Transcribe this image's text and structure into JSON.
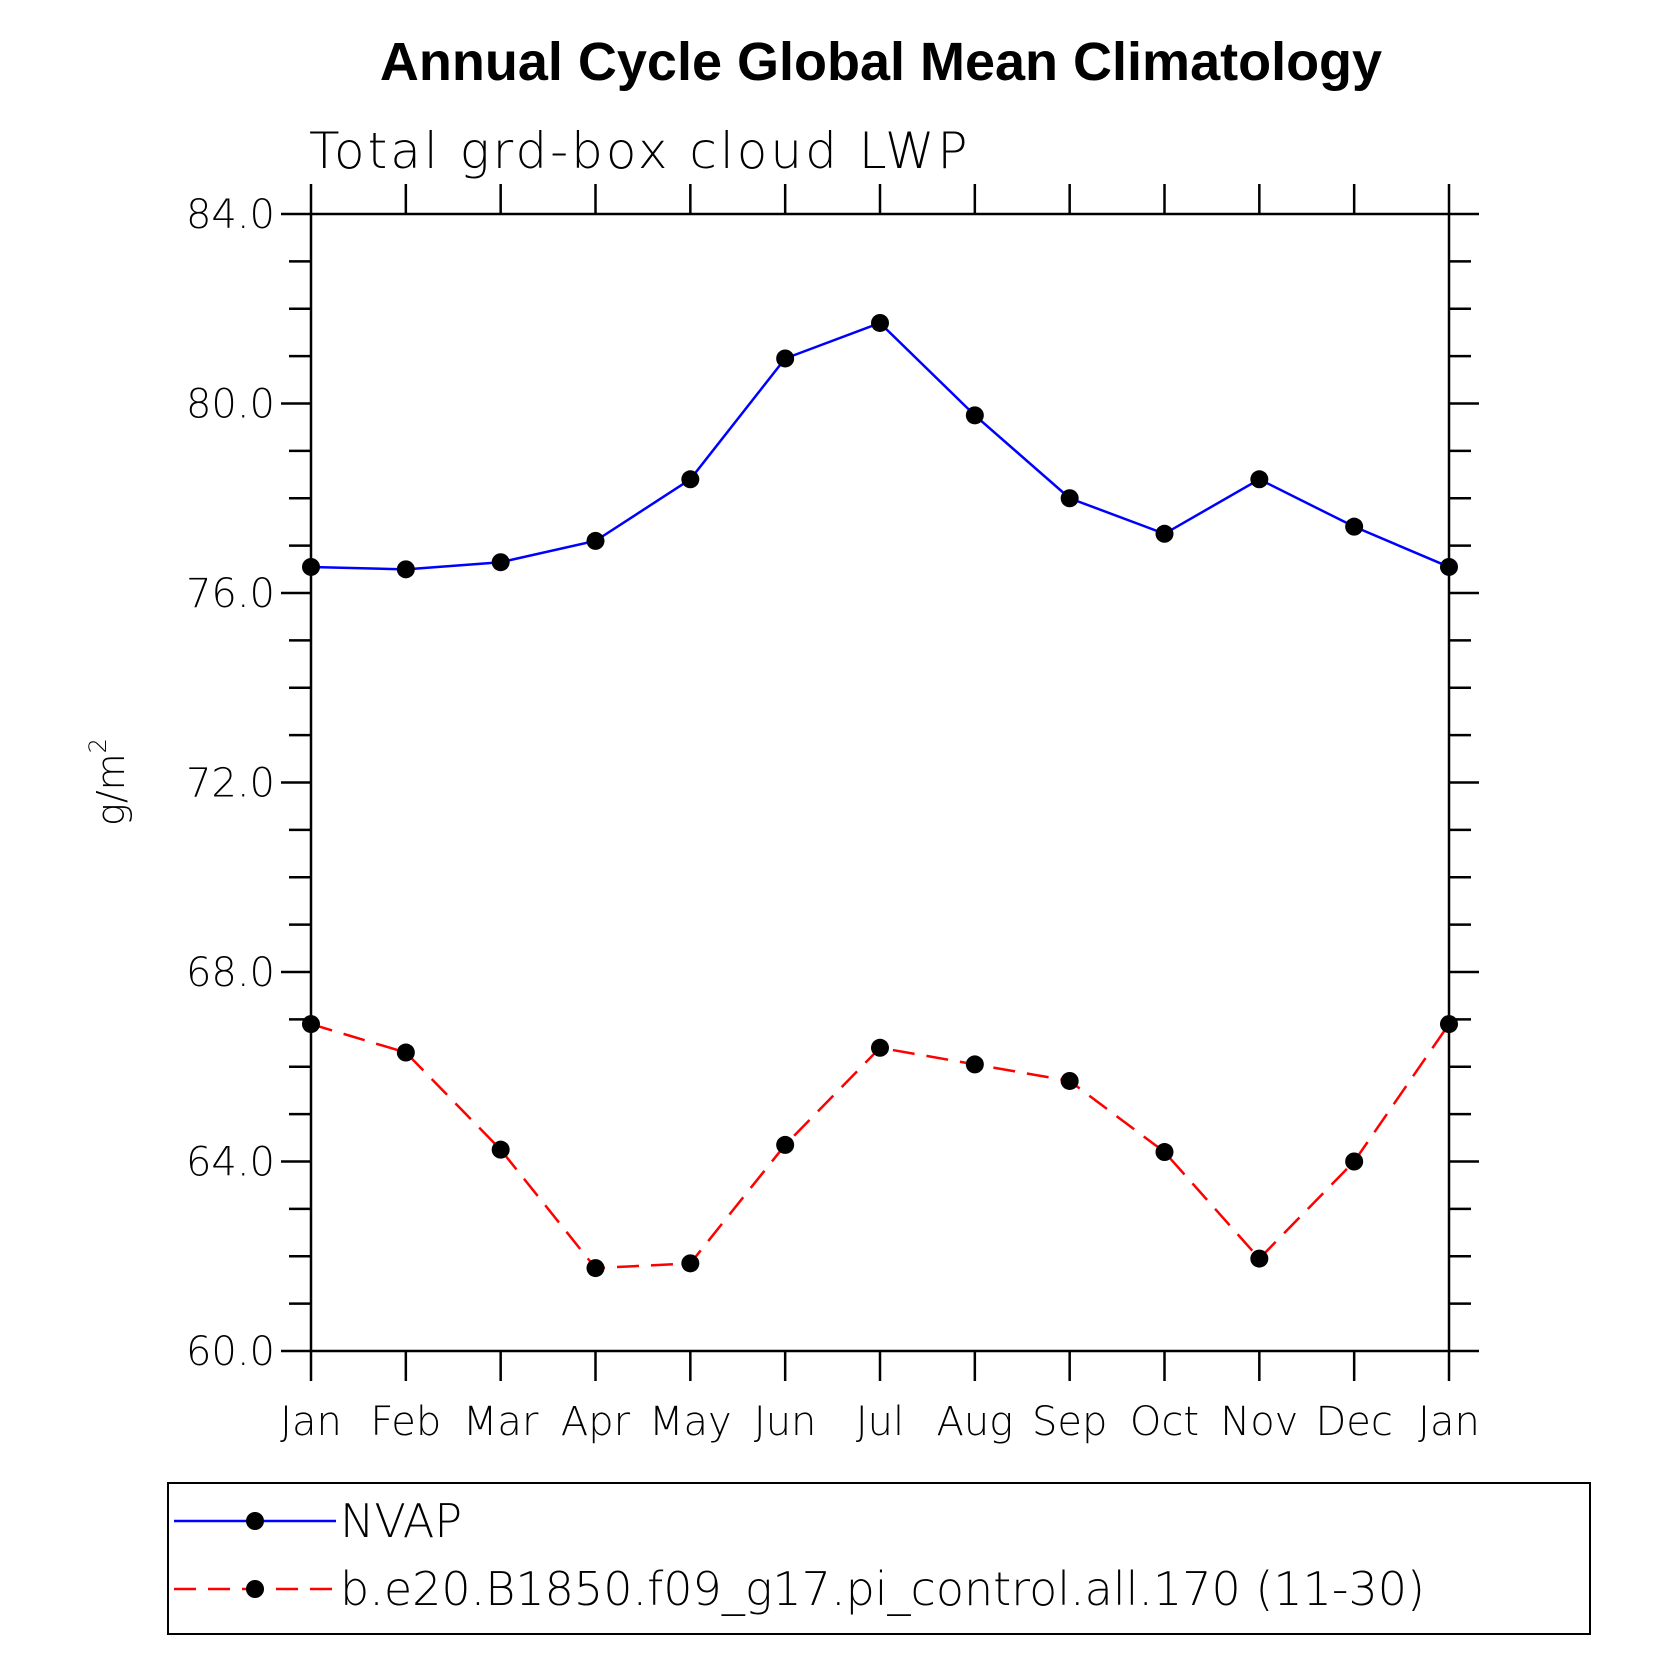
{
  "chart_data": {
    "type": "line",
    "title": "Annual Cycle Global Mean Climatology",
    "subtitle": "Total grd-box cloud LWP",
    "ylabel": "g/m",
    "ylabel_sup": "2",
    "xlabel": "",
    "categories": [
      "Jan",
      "Feb",
      "Mar",
      "Apr",
      "May",
      "Jun",
      "Jul",
      "Aug",
      "Sep",
      "Oct",
      "Nov",
      "Dec",
      "Jan"
    ],
    "ylim": [
      60,
      84
    ],
    "yticks": [
      60,
      64,
      68,
      72,
      76,
      80,
      84
    ],
    "ytick_labels": [
      "60.0",
      "64.0",
      "68.0",
      "72.0",
      "76.0",
      "80.0",
      "84.0"
    ],
    "grid": false,
    "legend_position": "bottom",
    "series": [
      {
        "name": "NVAP",
        "color": "#0000ff",
        "dash": "solid",
        "values": [
          76.55,
          76.5,
          76.65,
          77.1,
          78.4,
          80.95,
          81.7,
          79.75,
          78.0,
          77.25,
          78.4,
          77.4,
          76.55
        ]
      },
      {
        "name": "b.e20.B1850.f09_g17.pi_control.all.170 (11-30)",
        "color": "#ff0000",
        "dash": "dashed",
        "values": [
          66.9,
          66.3,
          64.25,
          61.75,
          61.85,
          64.35,
          66.4,
          66.05,
          65.7,
          64.2,
          61.95,
          64.0,
          66.9
        ]
      }
    ]
  }
}
